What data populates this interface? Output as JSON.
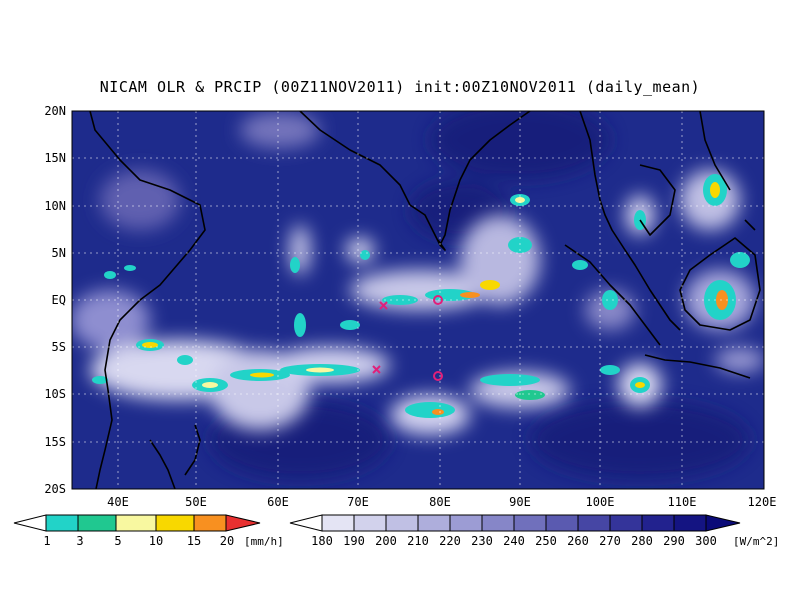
{
  "title": "NICAM OLR & PRCIP (00Z11NOV2011) init:00Z10NOV2011 (daily_mean)",
  "map": {
    "lon_range": [
      35,
      120
    ],
    "lat_range": [
      -20,
      20
    ],
    "lon_ticks": [
      "40E",
      "50E",
      "60E",
      "70E",
      "80E",
      "90E",
      "100E",
      "110E",
      "120E"
    ],
    "lat_ticks": [
      "20N",
      "15N",
      "10N",
      "5N",
      "EQ",
      "5S",
      "10S",
      "15S",
      "20S"
    ],
    "background_color": "#1e2b8c",
    "grid": "dotted",
    "markers": [
      {
        "type": "cross",
        "lon": 73,
        "lat": -0.5,
        "color": "#e0207a"
      },
      {
        "type": "circle",
        "lon": 80,
        "lat": 0,
        "color": "#e0207a"
      },
      {
        "type": "cross",
        "lon": 72,
        "lat": -7.5,
        "color": "#e0207a"
      },
      {
        "type": "circle",
        "lon": 80,
        "lat": -8,
        "color": "#e0207a"
      }
    ]
  },
  "precip_legend": {
    "labels": [
      "1",
      "3",
      "5",
      "10",
      "15",
      "20"
    ],
    "unit": "[mm/h]",
    "colors": [
      "#ffffff",
      "#22d3c8",
      "#20c890",
      "#f8f8a0",
      "#f8d800",
      "#f89020",
      "#e83030"
    ]
  },
  "olr_legend": {
    "labels": [
      "180",
      "190",
      "200",
      "210",
      "220",
      "230",
      "240",
      "250",
      "260",
      "270",
      "280",
      "290",
      "300"
    ],
    "unit": "[W/m^2]",
    "colors": [
      "#ffffff",
      "#e4e4f4",
      "#d2d2ec",
      "#c0c0e4",
      "#aeaedc",
      "#9c9cd4",
      "#8686c8",
      "#7070bc",
      "#5a5ab0",
      "#4646a4",
      "#34349a",
      "#22228e",
      "#141482",
      "#0a0a78"
    ]
  }
}
